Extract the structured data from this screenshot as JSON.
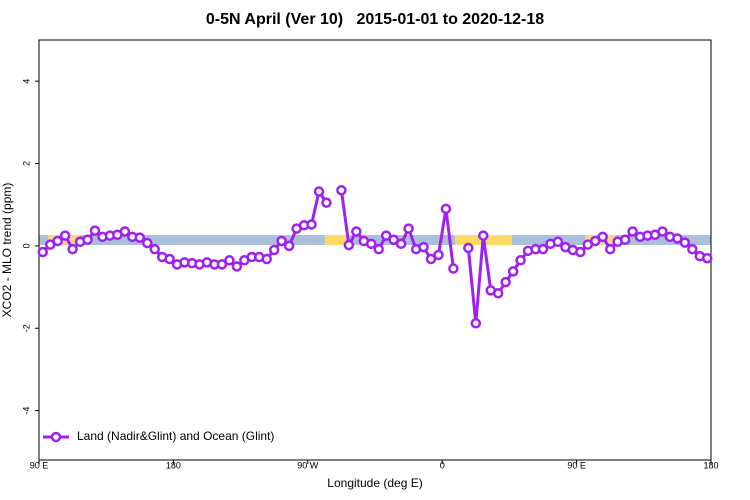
{
  "chart_data": {
    "type": "line",
    "title": "0-5N April (Ver 10)   2015-01-01 to 2020-12-18",
    "x_label": "Longitude (deg E)",
    "y_label": "XCO2 - MLO trend (ppm)",
    "xlim": [
      90,
      540
    ],
    "ylim": [
      -5.2,
      5
    ],
    "xticks": [
      {
        "value": 90,
        "label": "90 E"
      },
      {
        "value": 180,
        "label": "180"
      },
      {
        "value": 270,
        "label": "90 W"
      },
      {
        "value": 360,
        "label": "0"
      },
      {
        "value": 450,
        "label": "90 E"
      },
      {
        "value": 540,
        "label": "180"
      }
    ],
    "yticks": [
      -4,
      -2,
      0,
      2,
      4
    ],
    "legend": "bottom-left",
    "x": [
      92.5,
      97.5,
      102.5,
      107.5,
      112.5,
      117.5,
      122.5,
      127.5,
      132.5,
      137.5,
      142.5,
      147.5,
      152.5,
      157.5,
      162.5,
      167.5,
      172.5,
      177.5,
      182.5,
      187.5,
      192.5,
      197.5,
      202.5,
      207.5,
      212.5,
      217.5,
      222.5,
      227.5,
      232.5,
      237.5,
      242.5,
      247.5,
      252.5,
      257.5,
      262.5,
      267.5,
      272.5,
      277.5,
      282.5,
      287.5,
      292.5,
      297.5,
      302.5,
      307.5,
      312.5,
      317.5,
      322.5,
      327.5,
      332.5,
      337.5,
      342.5,
      347.5,
      352.5,
      357.5,
      362.5,
      367.5,
      372.5,
      377.5,
      382.5,
      387.5,
      392.5,
      397.5,
      402.5,
      407.5,
      412.5,
      417.5,
      422.5,
      427.5,
      432.5,
      437.5,
      442.5,
      447.5,
      452.5,
      457.5,
      462.5,
      467.5,
      472.5,
      477.5,
      482.5,
      487.5,
      492.5,
      497.5,
      502.5,
      507.5,
      512.5,
      517.5,
      522.5,
      527.5,
      532.5,
      537.5
    ],
    "series": [
      {
        "name": "Land (Nadir&Glint) and Ocean (Glint)",
        "color": "#a020f0",
        "values": [
          -0.15,
          0.03,
          0.12,
          0.25,
          -0.08,
          0.1,
          0.15,
          0.37,
          0.22,
          0.25,
          0.27,
          0.35,
          0.22,
          0.2,
          0.07,
          -0.08,
          -0.27,
          -0.32,
          -0.45,
          -0.4,
          -0.42,
          -0.45,
          -0.4,
          -0.45,
          -0.45,
          -0.35,
          -0.5,
          -0.35,
          -0.27,
          -0.27,
          -0.32,
          -0.1,
          0.12,
          0,
          0.42,
          0.5,
          0.52,
          1.32,
          1.05,
          null,
          1.35,
          0.02,
          0.35,
          0.12,
          0.05,
          -0.08,
          0.25,
          0.15,
          0.05,
          0.42,
          -0.08,
          -0.03,
          -0.32,
          -0.22,
          0.9,
          -0.55,
          null,
          -0.05,
          -1.88,
          0.25,
          -1.08,
          -1.15,
          -0.88,
          -0.62,
          -0.35,
          -0.12,
          -0.08,
          -0.08,
          0.05,
          0.1,
          -0.03,
          -0.1,
          -0.15,
          0.03,
          0.12,
          0.22,
          -0.08,
          0.1,
          0.15,
          0.35,
          0.22,
          0.25,
          0.27,
          0.35,
          0.22,
          0.18,
          0.08,
          -0.08,
          -0.25,
          -0.3
        ]
      }
    ]
  }
}
